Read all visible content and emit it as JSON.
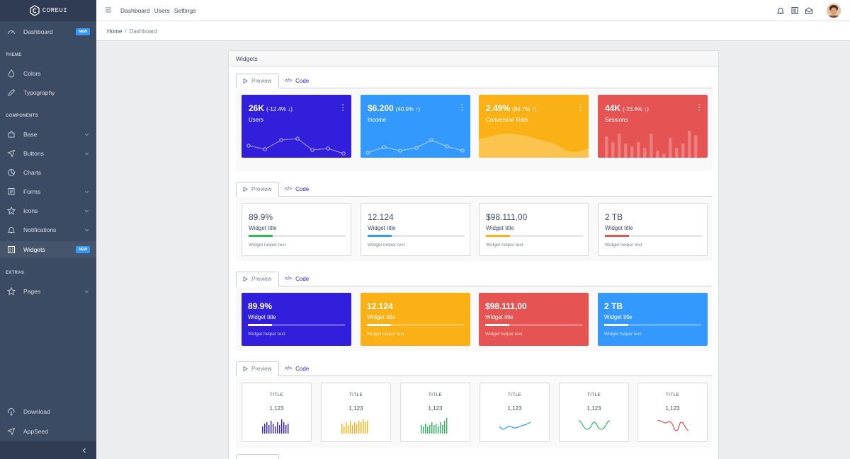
{
  "brand": {
    "name": "COREUI"
  },
  "sidebar": {
    "items": [
      {
        "label": "Dashboard",
        "badge": "NEW"
      },
      {
        "label": "Colors"
      },
      {
        "label": "Typography"
      },
      {
        "label": "Base"
      },
      {
        "label": "Buttons"
      },
      {
        "label": "Charts"
      },
      {
        "label": "Forms"
      },
      {
        "label": "Icons"
      },
      {
        "label": "Notifications"
      },
      {
        "label": "Widgets",
        "badge": "NEW"
      },
      {
        "label": "Pages"
      },
      {
        "label": "Download"
      },
      {
        "label": "AppSeed"
      }
    ],
    "titles": [
      "THEME",
      "COMPONENTS",
      "EXTRAS"
    ]
  },
  "header": {
    "nav": [
      "Dashboard",
      "Users",
      "Settings"
    ]
  },
  "breadcrumb": {
    "home": "Home",
    "sep": "/",
    "current": "Dashboard"
  },
  "card": {
    "title": "Widgets"
  },
  "tabs": {
    "preview": "Preview",
    "code": "Code"
  },
  "widgets1": [
    {
      "value": "26K",
      "change": "(-12.4% ↓)",
      "label": "Users",
      "color": "#321fdb"
    },
    {
      "value": "$6.200",
      "change": "(40.9% ↑)",
      "label": "Income",
      "color": "#3399ff"
    },
    {
      "value": "2.49%",
      "change": "(84.7% ↑)",
      "label": "Conversion Rate",
      "color": "#f9b115"
    },
    {
      "value": "44K",
      "change": "(-23.6% ↓)",
      "label": "Sessions",
      "color": "#e55353"
    }
  ],
  "widgets2": [
    {
      "value": "89.9%",
      "title": "Widget title",
      "helper": "Widget helper text",
      "color": "#2eb85c",
      "progress": 0.25
    },
    {
      "value": "12.124",
      "title": "Widget title",
      "helper": "Widget helper text",
      "color": "#3399ff",
      "progress": 0.25
    },
    {
      "value": "$98.111,00",
      "title": "Widget title",
      "helper": "Widget helper text",
      "color": "#f9b115",
      "progress": 0.25
    },
    {
      "value": "2 TB",
      "title": "Widget title",
      "helper": "Widget helper text",
      "color": "#e55353",
      "progress": 0.25
    }
  ],
  "widgets3": [
    {
      "value": "89.9%",
      "title": "Widget title",
      "helper": "Widget helper text",
      "color": "#321fdb",
      "progress": 0.25
    },
    {
      "value": "12.124",
      "title": "Widget title",
      "helper": "Widget helper text",
      "color": "#f9b115",
      "progress": 0.25
    },
    {
      "value": "$98.111,00",
      "title": "Widget title",
      "helper": "Widget helper text",
      "color": "#e55353",
      "progress": 0.25
    },
    {
      "value": "2 TB",
      "title": "Widget title",
      "helper": "Widget helper text",
      "color": "#3399ff",
      "progress": 0.25
    }
  ],
  "widgets4": [
    {
      "title": "TITLE",
      "value": "1,123",
      "color": "#321fdb",
      "kind": "bars"
    },
    {
      "title": "TITLE",
      "value": "1,123",
      "color": "#f9b115",
      "kind": "bars"
    },
    {
      "title": "TITLE",
      "value": "1,123",
      "color": "#2eb85c",
      "kind": "bars"
    },
    {
      "title": "TITLE",
      "value": "1,123",
      "color": "#3399ff",
      "kind": "line"
    },
    {
      "title": "TITLE",
      "value": "1,123",
      "color": "#2eb85c",
      "kind": "wave"
    },
    {
      "title": "TITLE",
      "value": "1,123",
      "color": "#e55353",
      "kind": "wave"
    }
  ]
}
